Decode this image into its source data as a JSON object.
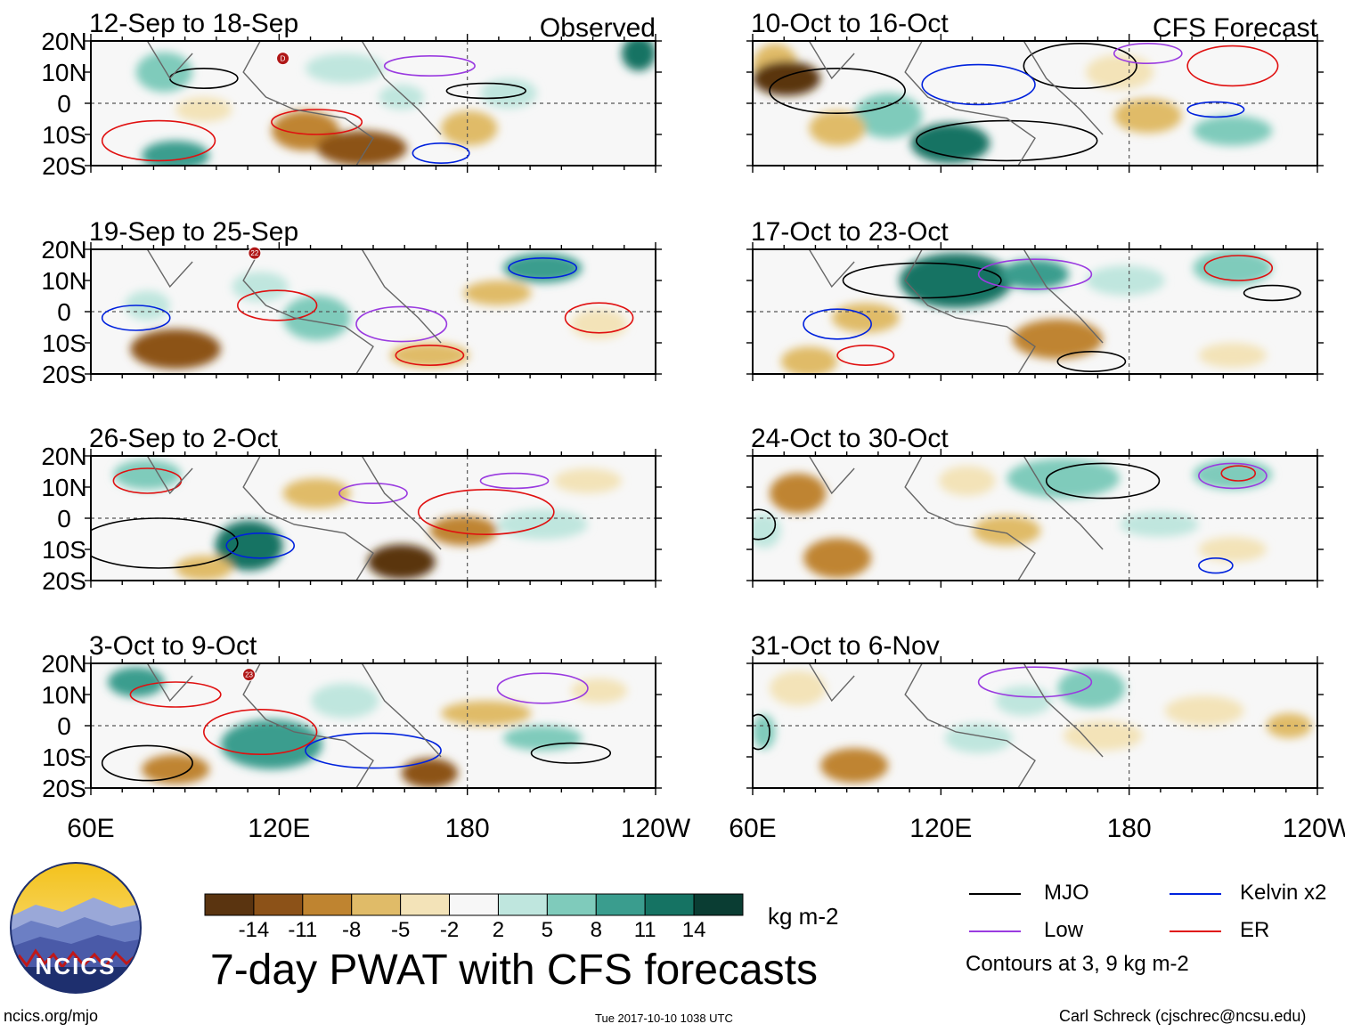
{
  "chart_data": {
    "type": "heatmap",
    "title": "7-day PWAT with CFS forecasts",
    "units": "kg m-2",
    "columns": [
      {
        "name": "Observed",
        "panels": [
          "12-Sep to 18-Sep",
          "19-Sep to 25-Sep",
          "26-Sep to 2-Oct",
          "3-Oct to 9-Oct"
        ]
      },
      {
        "name": "CFS Forecast",
        "panels": [
          "10-Oct to 16-Oct",
          "17-Oct to 23-Oct",
          "24-Oct to 30-Oct",
          "31-Oct to 6-Nov"
        ]
      }
    ],
    "x_ticks": [
      "60E",
      "120E",
      "180",
      "120W"
    ],
    "x_range_deg": [
      60,
      240
    ],
    "y_ticks": [
      "20N",
      "10N",
      "0",
      "10S",
      "20S"
    ],
    "y_range_deg": [
      -20,
      20
    ],
    "colorbar": {
      "ticks": [
        "-14",
        "-11",
        "-8",
        "-5",
        "-2",
        "2",
        "5",
        "8",
        "11",
        "14"
      ],
      "colors": [
        "#5a3410",
        "#8c5218",
        "#bf8430",
        "#e0bb68",
        "#f3e3b8",
        "#f7f7f7",
        "#bfe6de",
        "#7fcbbb",
        "#3a9d8e",
        "#157363",
        "#0a3d33"
      ]
    },
    "contour_note": "Contours at 3, 9 kg m-2",
    "legend": [
      {
        "label": "MJO",
        "color": "#000000"
      },
      {
        "label": "Kelvin x2",
        "color": "#0022dd"
      },
      {
        "label": "Low",
        "color": "#9a3be0"
      },
      {
        "label": "ER",
        "color": "#e01010"
      }
    ],
    "storm_markers": [
      {
        "panel": "12-Sep to 18-Sep",
        "label": "D"
      },
      {
        "panel": "19-Sep to 25-Sep",
        "label": "22"
      },
      {
        "panel": "3-Oct to 9-Oct",
        "label": "23"
      }
    ]
  },
  "footer": {
    "logo_text": "NCICS",
    "site": "ncics.org/mjo",
    "timestamp": "Tue 2017-10-10 1038 UTC",
    "author": "Carl Schreck (cjschrec@ncsu.edu)"
  }
}
